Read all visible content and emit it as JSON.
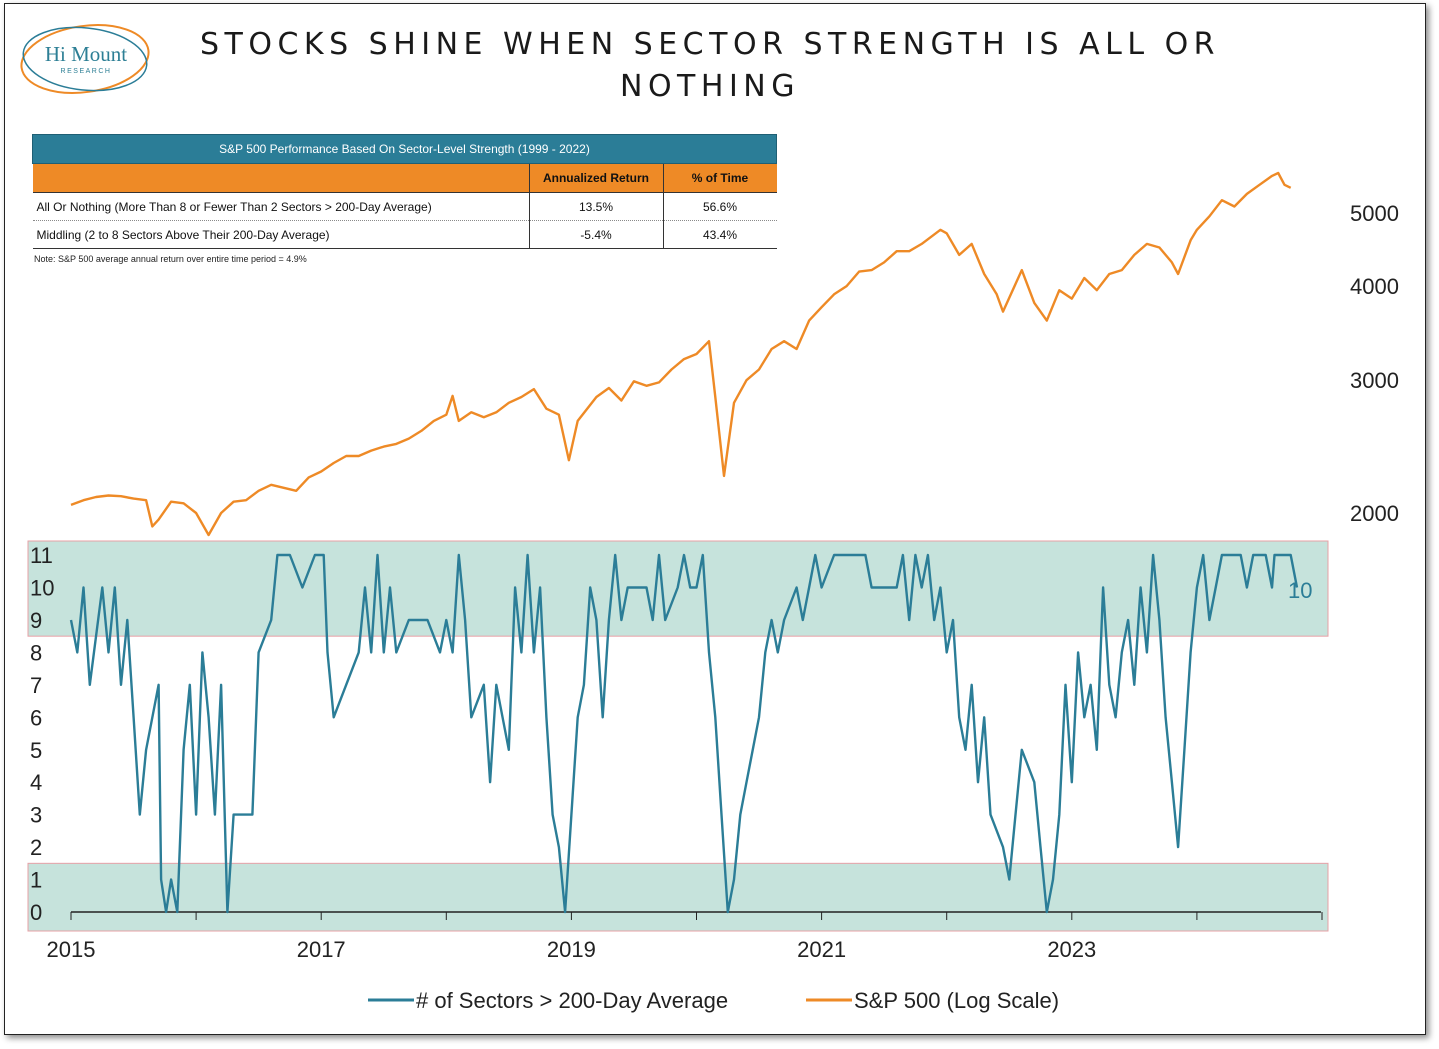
{
  "logo": {
    "name": "Hi Mount",
    "sub": "RESEARCH"
  },
  "title": "STOCKS SHINE WHEN SECTOR STRENGTH IS ALL OR NOTHING",
  "table": {
    "title": "S&P 500 Performance Based On Sector-Level Strength (1999 - 2022)",
    "headers": [
      "",
      "Annualized Return",
      "% of Time"
    ],
    "rows": [
      {
        "label": "All Or Nothing (More Than 8 or Fewer Than 2 Sectors > 200-Day Average)",
        "return": "13.5%",
        "time": "56.6%"
      },
      {
        "label": "Middling (2 to 8 Sectors Above Their 200-Day Average)",
        "return": "-5.4%",
        "time": "43.4%"
      }
    ],
    "note": "Note: S&P 500 average annual return over entire time period = 4.9%"
  },
  "colors": {
    "sectors": "#2b7d97",
    "sp500": "#ee8a26",
    "band": "#c6e3dc",
    "band_border": "#e7a0a6"
  },
  "chart_data": {
    "type": "line",
    "x_axis": {
      "ticks": [
        "2015",
        "2017",
        "2019",
        "2021",
        "2023"
      ],
      "range": [
        2015.0,
        2025.0
      ]
    },
    "left_axis": {
      "ticks": [
        "0",
        "1",
        "2",
        "3",
        "4",
        "5",
        "6",
        "7",
        "8",
        "9",
        "10",
        "11"
      ],
      "range": [
        0,
        11
      ]
    },
    "right_axis": {
      "ticks": [
        "2000",
        "3000",
        "4000",
        "5000"
      ],
      "scale": "log"
    },
    "bands": [
      {
        "from": 8.5,
        "to": 11.5
      },
      {
        "from": -0.5,
        "to": 1.5
      }
    ],
    "last_value_label": "10",
    "legend_position": "bottom",
    "series": [
      {
        "name": "# of Sectors > 200-Day Average",
        "axis": "left",
        "points": [
          [
            2015.0,
            9
          ],
          [
            2015.05,
            8
          ],
          [
            2015.1,
            10
          ],
          [
            2015.15,
            7
          ],
          [
            2015.25,
            10
          ],
          [
            2015.3,
            8
          ],
          [
            2015.35,
            10
          ],
          [
            2015.4,
            7
          ],
          [
            2015.45,
            9
          ],
          [
            2015.5,
            6
          ],
          [
            2015.55,
            3
          ],
          [
            2015.6,
            5
          ],
          [
            2015.7,
            7
          ],
          [
            2015.72,
            1
          ],
          [
            2015.76,
            0
          ],
          [
            2015.8,
            1
          ],
          [
            2015.85,
            0
          ],
          [
            2015.9,
            5
          ],
          [
            2015.95,
            7
          ],
          [
            2016.0,
            3
          ],
          [
            2016.05,
            8
          ],
          [
            2016.1,
            6
          ],
          [
            2016.15,
            3
          ],
          [
            2016.2,
            7
          ],
          [
            2016.25,
            0
          ],
          [
            2016.3,
            3
          ],
          [
            2016.45,
            3
          ],
          [
            2016.5,
            8
          ],
          [
            2016.6,
            9
          ],
          [
            2016.65,
            11
          ],
          [
            2016.75,
            11
          ],
          [
            2016.85,
            10
          ],
          [
            2016.95,
            11
          ],
          [
            2017.0,
            11
          ],
          [
            2017.02,
            11
          ],
          [
            2017.05,
            8
          ],
          [
            2017.1,
            6
          ],
          [
            2017.2,
            7
          ],
          [
            2017.3,
            8
          ],
          [
            2017.35,
            10
          ],
          [
            2017.4,
            8
          ],
          [
            2017.45,
            11
          ],
          [
            2017.5,
            8
          ],
          [
            2017.55,
            10
          ],
          [
            2017.6,
            8
          ],
          [
            2017.7,
            9
          ],
          [
            2017.85,
            9
          ],
          [
            2017.95,
            8
          ],
          [
            2018.0,
            9
          ],
          [
            2018.05,
            8
          ],
          [
            2018.1,
            11
          ],
          [
            2018.15,
            9
          ],
          [
            2018.2,
            6
          ],
          [
            2018.3,
            7
          ],
          [
            2018.35,
            4
          ],
          [
            2018.4,
            7
          ],
          [
            2018.5,
            5
          ],
          [
            2018.55,
            10
          ],
          [
            2018.6,
            8
          ],
          [
            2018.65,
            11
          ],
          [
            2018.7,
            8
          ],
          [
            2018.75,
            10
          ],
          [
            2018.8,
            6
          ],
          [
            2018.85,
            3
          ],
          [
            2018.9,
            2
          ],
          [
            2018.95,
            0
          ],
          [
            2019.0,
            3
          ],
          [
            2019.05,
            6
          ],
          [
            2019.1,
            7
          ],
          [
            2019.15,
            10
          ],
          [
            2019.2,
            9
          ],
          [
            2019.25,
            6
          ],
          [
            2019.3,
            9
          ],
          [
            2019.35,
            11
          ],
          [
            2019.4,
            9
          ],
          [
            2019.45,
            10
          ],
          [
            2019.6,
            10
          ],
          [
            2019.65,
            9
          ],
          [
            2019.7,
            11
          ],
          [
            2019.75,
            9
          ],
          [
            2019.85,
            10
          ],
          [
            2019.9,
            11
          ],
          [
            2019.95,
            10
          ],
          [
            2020.0,
            10
          ],
          [
            2020.05,
            11
          ],
          [
            2020.1,
            8
          ],
          [
            2020.15,
            6
          ],
          [
            2020.2,
            3
          ],
          [
            2020.25,
            0
          ],
          [
            2020.3,
            1
          ],
          [
            2020.35,
            3
          ],
          [
            2020.4,
            4
          ],
          [
            2020.5,
            6
          ],
          [
            2020.55,
            8
          ],
          [
            2020.6,
            9
          ],
          [
            2020.65,
            8
          ],
          [
            2020.7,
            9
          ],
          [
            2020.8,
            10
          ],
          [
            2020.85,
            9
          ],
          [
            2020.9,
            10
          ],
          [
            2020.95,
            11
          ],
          [
            2021.0,
            10
          ],
          [
            2021.1,
            11
          ],
          [
            2021.35,
            11
          ],
          [
            2021.4,
            10
          ],
          [
            2021.6,
            10
          ],
          [
            2021.65,
            11
          ],
          [
            2021.7,
            9
          ],
          [
            2021.75,
            11
          ],
          [
            2021.8,
            10
          ],
          [
            2021.85,
            11
          ],
          [
            2021.9,
            9
          ],
          [
            2021.95,
            10
          ],
          [
            2022.0,
            8
          ],
          [
            2022.05,
            9
          ],
          [
            2022.1,
            6
          ],
          [
            2022.15,
            5
          ],
          [
            2022.2,
            7
          ],
          [
            2022.25,
            4
          ],
          [
            2022.3,
            6
          ],
          [
            2022.35,
            3
          ],
          [
            2022.45,
            2
          ],
          [
            2022.5,
            1
          ],
          [
            2022.55,
            3
          ],
          [
            2022.6,
            5
          ],
          [
            2022.7,
            4
          ],
          [
            2022.75,
            2
          ],
          [
            2022.8,
            0
          ],
          [
            2022.85,
            1
          ],
          [
            2022.9,
            3
          ],
          [
            2022.95,
            7
          ],
          [
            2023.0,
            4
          ],
          [
            2023.05,
            8
          ],
          [
            2023.1,
            6
          ],
          [
            2023.15,
            7
          ],
          [
            2023.2,
            5
          ],
          [
            2023.25,
            10
          ],
          [
            2023.3,
            7
          ],
          [
            2023.35,
            6
          ],
          [
            2023.4,
            8
          ],
          [
            2023.45,
            9
          ],
          [
            2023.5,
            7
          ],
          [
            2023.55,
            10
          ],
          [
            2023.6,
            8
          ],
          [
            2023.65,
            11
          ],
          [
            2023.7,
            9
          ],
          [
            2023.75,
            6
          ],
          [
            2023.8,
            4
          ],
          [
            2023.85,
            2
          ],
          [
            2023.9,
            5
          ],
          [
            2023.95,
            8
          ],
          [
            2024.0,
            10
          ],
          [
            2024.05,
            11
          ],
          [
            2024.1,
            9
          ],
          [
            2024.15,
            10
          ],
          [
            2024.2,
            11
          ],
          [
            2024.35,
            11
          ],
          [
            2024.4,
            10
          ],
          [
            2024.45,
            11
          ],
          [
            2024.55,
            11
          ],
          [
            2024.6,
            10
          ],
          [
            2024.62,
            11
          ],
          [
            2024.75,
            11
          ],
          [
            2024.8,
            10
          ]
        ]
      },
      {
        "name": "S&P 500 (Log Scale)",
        "axis": "right",
        "points": [
          [
            2015.0,
            2050
          ],
          [
            2015.1,
            2080
          ],
          [
            2015.2,
            2100
          ],
          [
            2015.3,
            2110
          ],
          [
            2015.4,
            2105
          ],
          [
            2015.5,
            2090
          ],
          [
            2015.6,
            2080
          ],
          [
            2015.65,
            1920
          ],
          [
            2015.7,
            1960
          ],
          [
            2015.8,
            2070
          ],
          [
            2015.9,
            2060
          ],
          [
            2016.0,
            2000
          ],
          [
            2016.1,
            1870
          ],
          [
            2016.2,
            2000
          ],
          [
            2016.3,
            2070
          ],
          [
            2016.4,
            2080
          ],
          [
            2016.5,
            2140
          ],
          [
            2016.6,
            2180
          ],
          [
            2016.7,
            2160
          ],
          [
            2016.8,
            2140
          ],
          [
            2016.9,
            2230
          ],
          [
            2017.0,
            2270
          ],
          [
            2017.1,
            2330
          ],
          [
            2017.2,
            2380
          ],
          [
            2017.3,
            2380
          ],
          [
            2017.4,
            2420
          ],
          [
            2017.5,
            2450
          ],
          [
            2017.6,
            2470
          ],
          [
            2017.7,
            2510
          ],
          [
            2017.8,
            2570
          ],
          [
            2017.9,
            2650
          ],
          [
            2018.0,
            2700
          ],
          [
            2018.05,
            2860
          ],
          [
            2018.1,
            2650
          ],
          [
            2018.2,
            2720
          ],
          [
            2018.3,
            2680
          ],
          [
            2018.4,
            2720
          ],
          [
            2018.5,
            2800
          ],
          [
            2018.6,
            2850
          ],
          [
            2018.7,
            2920
          ],
          [
            2018.8,
            2750
          ],
          [
            2018.9,
            2700
          ],
          [
            2018.98,
            2350
          ],
          [
            2019.05,
            2650
          ],
          [
            2019.2,
            2850
          ],
          [
            2019.3,
            2930
          ],
          [
            2019.4,
            2820
          ],
          [
            2019.5,
            2990
          ],
          [
            2019.6,
            2950
          ],
          [
            2019.7,
            2980
          ],
          [
            2019.8,
            3100
          ],
          [
            2019.9,
            3200
          ],
          [
            2020.0,
            3250
          ],
          [
            2020.1,
            3380
          ],
          [
            2020.15,
            2850
          ],
          [
            2020.22,
            2240
          ],
          [
            2020.3,
            2800
          ],
          [
            2020.4,
            3000
          ],
          [
            2020.5,
            3100
          ],
          [
            2020.6,
            3300
          ],
          [
            2020.7,
            3380
          ],
          [
            2020.8,
            3300
          ],
          [
            2020.9,
            3600
          ],
          [
            2021.0,
            3750
          ],
          [
            2021.1,
            3900
          ],
          [
            2021.2,
            4000
          ],
          [
            2021.3,
            4180
          ],
          [
            2021.4,
            4200
          ],
          [
            2021.5,
            4300
          ],
          [
            2021.6,
            4450
          ],
          [
            2021.7,
            4450
          ],
          [
            2021.8,
            4550
          ],
          [
            2021.95,
            4750
          ],
          [
            2022.0,
            4700
          ],
          [
            2022.1,
            4400
          ],
          [
            2022.2,
            4550
          ],
          [
            2022.3,
            4150
          ],
          [
            2022.4,
            3900
          ],
          [
            2022.45,
            3700
          ],
          [
            2022.6,
            4200
          ],
          [
            2022.7,
            3800
          ],
          [
            2022.8,
            3600
          ],
          [
            2022.9,
            3950
          ],
          [
            2023.0,
            3850
          ],
          [
            2023.1,
            4100
          ],
          [
            2023.2,
            3950
          ],
          [
            2023.3,
            4150
          ],
          [
            2023.4,
            4200
          ],
          [
            2023.5,
            4400
          ],
          [
            2023.6,
            4550
          ],
          [
            2023.7,
            4500
          ],
          [
            2023.8,
            4300
          ],
          [
            2023.85,
            4150
          ],
          [
            2023.95,
            4600
          ],
          [
            2024.0,
            4750
          ],
          [
            2024.1,
            4950
          ],
          [
            2024.2,
            5200
          ],
          [
            2024.3,
            5100
          ],
          [
            2024.4,
            5300
          ],
          [
            2024.5,
            5450
          ],
          [
            2024.6,
            5600
          ],
          [
            2024.65,
            5650
          ],
          [
            2024.7,
            5450
          ],
          [
            2024.75,
            5400
          ]
        ]
      }
    ]
  },
  "legend": {
    "items": [
      "# of Sectors > 200-Day Average",
      "S&P 500 (Log Scale)"
    ]
  }
}
